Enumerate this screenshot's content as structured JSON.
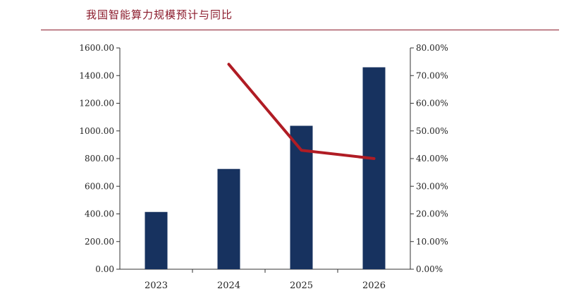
{
  "chart_data": {
    "type": "bar",
    "title": "我国智能算力规模预计与同比",
    "categories": [
      "2023",
      "2024",
      "2025",
      "2026"
    ],
    "series": [
      {
        "type": "bar",
        "axis": "left",
        "values": [
          414,
          725,
          1037,
          1460
        ]
      },
      {
        "type": "line",
        "axis": "right",
        "values": [
          null,
          74.1,
          43.0,
          40.0
        ]
      }
    ],
    "left_axis": {
      "ylim": [
        0,
        1600
      ],
      "ticks": [
        "0.00",
        "200.00",
        "400.00",
        "600.00",
        "800.00",
        "1000.00",
        "1200.00",
        "1400.00",
        "1600.00"
      ]
    },
    "right_axis": {
      "ylim": [
        0,
        80
      ],
      "ticks": [
        "0.00%",
        "10.00%",
        "20.00%",
        "30.00%",
        "40.00%",
        "50.00%",
        "60.00%",
        "70.00%",
        "80.00%"
      ]
    },
    "grid": false,
    "legend": "none",
    "colors": {
      "bar": "#17325f",
      "line": "#b01c24",
      "title": "#8b1a2b"
    }
  }
}
